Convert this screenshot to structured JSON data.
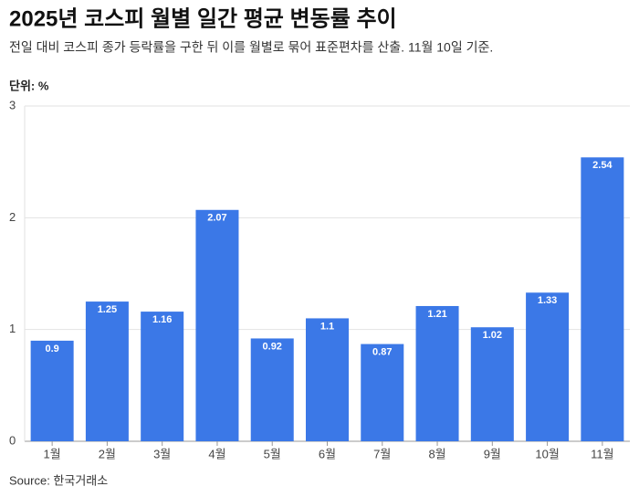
{
  "chart_data": {
    "type": "bar",
    "title": "2025년 코스피 월별 일간 평균 변동률 추이",
    "subtitle": "전일 대비 코스피 종가 등락률을 구한 뒤 이를 월별로 묶어 표준편차를 산출. 11월 10일 기준.",
    "unit_label": "단위: %",
    "source": "Source: 한국거래소",
    "categories": [
      "1월",
      "2월",
      "3월",
      "4월",
      "5월",
      "6월",
      "7월",
      "8월",
      "9월",
      "10월",
      "11월"
    ],
    "values": [
      0.9,
      1.25,
      1.16,
      2.07,
      0.92,
      1.1,
      0.87,
      1.21,
      1.02,
      1.33,
      2.54
    ],
    "color": "#3b78e7",
    "ylim": [
      0,
      3
    ],
    "yticks": [
      0,
      1,
      2,
      3
    ],
    "grid": true
  }
}
